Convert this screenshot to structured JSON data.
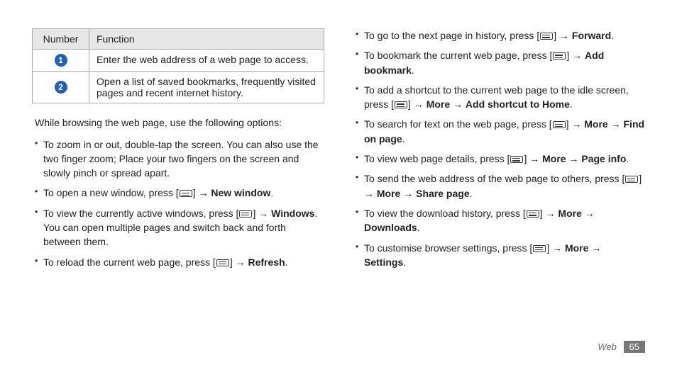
{
  "table": {
    "headers": {
      "number": "Number",
      "function": "Function"
    },
    "rows": [
      {
        "badge": "1",
        "text": "Enter the web address of a web page to access."
      },
      {
        "badge": "2",
        "text": "Open a list of saved bookmarks, frequently visited pages and recent internet history."
      }
    ]
  },
  "lead": "While browsing the web page, use the following options:",
  "left_bullets": [
    {
      "html": "To zoom in or out, double-tap the screen. You can also use the two finger zoom; Place your two fingers on the screen and slowly pinch or spread apart."
    },
    {
      "html": "To open a new window, press [{MENU}] → <b>New window</b>."
    },
    {
      "html": "To view the currently active windows, press [{MENU}] → <b>Windows</b>. You can open multiple pages and switch back and forth between them."
    },
    {
      "html": "To reload the current web page, press [{MENU}] → <b>Refresh</b>."
    }
  ],
  "right_bullets": [
    {
      "html": "To go to the next page in history, press [{MENU}] → <b>Forward</b>."
    },
    {
      "html": "To bookmark the current web page, press [{MENU}] → <b>Add bookmark</b>."
    },
    {
      "html": "To add a shortcut to the current web page to the idle screen, press [{MENU}] → <b>More</b> → <b>Add shortcut to Home</b>."
    },
    {
      "html": "To search for text on the web page, press [{MENU}] → <b>More</b> → <b>Find on page</b>."
    },
    {
      "html": "To view web page details, press [{MENU}] → <b>More</b> → <b>Page info</b>."
    },
    {
      "html": "To send the web address of the web page to others, press [{MENU}] → <b>More</b> → <b>Share page</b>."
    },
    {
      "html": "To view the download history, press [{MENU}] → <b>More</b> → <b>Downloads</b>."
    },
    {
      "html": "To customise browser settings, press [{MENU}] → <b>More</b> → <b>Settings</b>."
    }
  ],
  "footer": {
    "section": "Web",
    "page": "65"
  }
}
